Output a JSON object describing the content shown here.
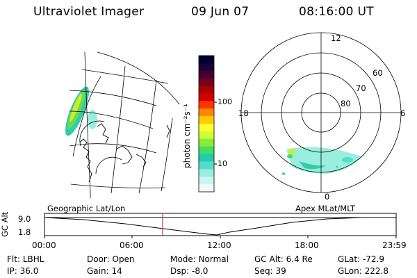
{
  "header": {
    "instrument": "Ultraviolet Imager",
    "date": "09 Jun 07",
    "time": "08:16:00 UT"
  },
  "colorbar": {
    "label": "photon cm⁻²s⁻¹",
    "ticks": [
      "100",
      "10"
    ],
    "colors": [
      "#000033",
      "#1a0033",
      "#440033",
      "#77001a",
      "#aa0000",
      "#d40000",
      "#ff3300",
      "#ff8800",
      "#ffcc00",
      "#ffff33",
      "#ccff33",
      "#88ee33",
      "#44dd66",
      "#22ccaa",
      "#55ddcc",
      "#99eedd",
      "#ccf5ee",
      "#f0fbf8"
    ]
  },
  "polar_plot": {
    "mlt_labels": {
      "top": "12",
      "left": "18",
      "right": "6",
      "bottom": "0"
    },
    "lat_labels": [
      "60",
      "70",
      "80"
    ]
  },
  "timeline": {
    "left_label": "Geographic Lat/Lon",
    "right_label": "Apex MLat/MLT",
    "axis_label": "GC Alt",
    "y_ticks": [
      "9.0",
      "1.8"
    ],
    "x_ticks": [
      "00:00",
      "06:00",
      "12:00",
      "18:00",
      "23:59"
    ],
    "marker_color": "#cc3333"
  },
  "status": {
    "row1": [
      {
        "key": "Flt:",
        "value": "LBHL"
      },
      {
        "key": "Door:",
        "value": "Open"
      },
      {
        "key": "Mode:",
        "value": "Normal"
      },
      {
        "key": "GC Alt:",
        "value": "6.4 Re"
      },
      {
        "key": "GLat:",
        "value": "-72.9"
      }
    ],
    "row2": [
      {
        "key": "IP:",
        "value": "36.0"
      },
      {
        "key": "Gain:",
        "value": "14"
      },
      {
        "key": "Dsp:",
        "value": "-8.0"
      },
      {
        "key": "Seq:",
        "value": "39"
      },
      {
        "key": "GLon:",
        "value": "222.8"
      }
    ]
  }
}
